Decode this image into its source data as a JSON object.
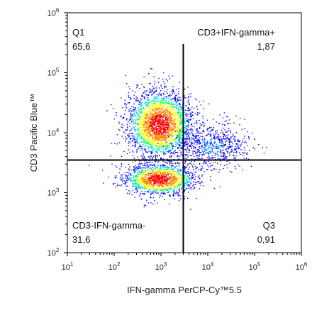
{
  "chart_data": {
    "type": "scatter",
    "subtype": "flow-cytometry-density-dot-plot",
    "xlabel": "IFN-gamma PerCP-Cy™5.5",
    "ylabel": "CD3 Pacific Blue™",
    "x_scale": "log",
    "y_scale": "log",
    "xlim": [
      10,
      1000000
    ],
    "ylim": [
      100,
      1000000
    ],
    "x_ticks": [
      {
        "base": "10",
        "exp": "1"
      },
      {
        "base": "10",
        "exp": "2"
      },
      {
        "base": "10",
        "exp": "3"
      },
      {
        "base": "10",
        "exp": "4"
      },
      {
        "base": "10",
        "exp": "5"
      },
      {
        "base": "10",
        "exp": "6"
      }
    ],
    "y_ticks": [
      {
        "base": "10",
        "exp": "2"
      },
      {
        "base": "10",
        "exp": "3"
      },
      {
        "base": "10",
        "exp": "4"
      },
      {
        "base": "10",
        "exp": "5"
      },
      {
        "base": "10",
        "exp": "6"
      }
    ],
    "gates": {
      "x": 3000,
      "y": 3500
    },
    "quadrants": [
      {
        "name": "Q1",
        "value": "65,6",
        "position": "top-left"
      },
      {
        "name": "CD3+IFN-gamma+",
        "value": "1,87",
        "position": "top-right"
      },
      {
        "name": "CD3-IFN-gamma-",
        "value": "31,6",
        "position": "bottom-left"
      },
      {
        "name": "Q3",
        "value": "0,91",
        "position": "bottom-right"
      }
    ],
    "populations": [
      {
        "name": "",
        "x_center": 900,
        "y_center": 14000,
        "note": "CD3+ IFN-gamma- main cluster",
        "density": "high"
      },
      {
        "name": "",
        "x_center": 900,
        "y_center": 1700,
        "note": "CD3- IFN-gamma- cluster",
        "density": "high"
      },
      {
        "name": "",
        "x_center": 12000,
        "y_center": 6000,
        "note": "CD3+ IFN-gamma+ tail",
        "density": "low"
      }
    ],
    "colormap": [
      "#0000ff",
      "#00c8ff",
      "#00ff66",
      "#ffff00",
      "#ff8800",
      "#ff0000"
    ],
    "grid": false,
    "legend": "none"
  }
}
